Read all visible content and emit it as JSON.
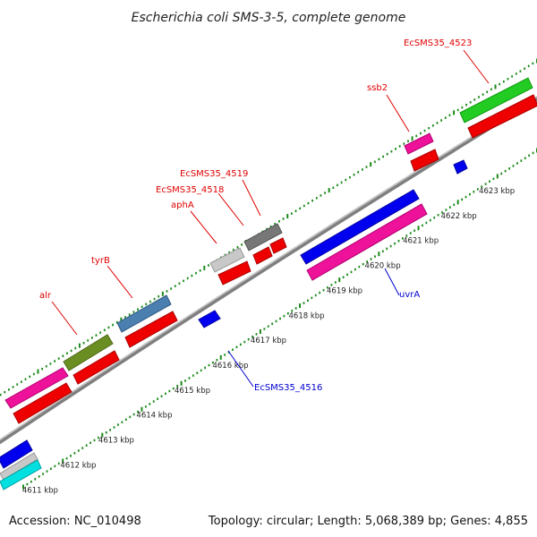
{
  "title": "Escherichia coli SMS-3-5, complete genome",
  "footer": {
    "accession": "Accession: NC_010498",
    "summary": "Topology: circular; Length: 5,068,389 bp; Genes: 4,855"
  },
  "colors": {
    "backbone": "#8c8c8c",
    "tick": "#1a8a1a",
    "label_forward": "#e00000",
    "label_reverse": "#0000d0"
  },
  "ticks": [
    {
      "label": "4611 kbp"
    },
    {
      "label": "4612 kbp"
    },
    {
      "label": "4613 kbp"
    },
    {
      "label": "4614 kbp"
    },
    {
      "label": "4615 kbp"
    },
    {
      "label": "4616 kbp"
    },
    {
      "label": "4617 kbp"
    },
    {
      "label": "4618 kbp"
    },
    {
      "label": "4619 kbp"
    },
    {
      "label": "4620 kbp"
    },
    {
      "label": "4621 kbp"
    },
    {
      "label": "4622 kbp"
    },
    {
      "label": "4623 kbp"
    }
  ],
  "genes": [
    {
      "name": "alr",
      "color": "#ee1199",
      "strand": "forward"
    },
    {
      "name": "tyrB",
      "color": "#4a7fb0",
      "strand": "forward"
    },
    {
      "name": "aphA",
      "color": "#c8c8c8",
      "strand": "forward"
    },
    {
      "name": "EcSMS35_4518",
      "color": "#777777",
      "strand": "forward"
    },
    {
      "name": "EcSMS35_4519",
      "color": "#777777",
      "strand": "forward"
    },
    {
      "name": "ssb2",
      "color": "#ee1199",
      "strand": "forward"
    },
    {
      "name": "EcSMS35_4523",
      "color": "#22cc22",
      "strand": "forward"
    },
    {
      "name": "uvrA",
      "color": "#0000ee",
      "strand": "reverse"
    },
    {
      "name": "EcSMS35_4516",
      "color": "#0000ee",
      "strand": "reverse"
    }
  ],
  "unlabeled_features": [
    {
      "color": "#6b8e23",
      "strand": "forward",
      "note": "olive gene"
    },
    {
      "color": "#0000ee",
      "strand": "reverse",
      "note": "blue gene near 4611 kbp"
    },
    {
      "color": "#00e0e0",
      "strand": "reverse",
      "note": "cyan gene near 4611 kbp"
    }
  ]
}
